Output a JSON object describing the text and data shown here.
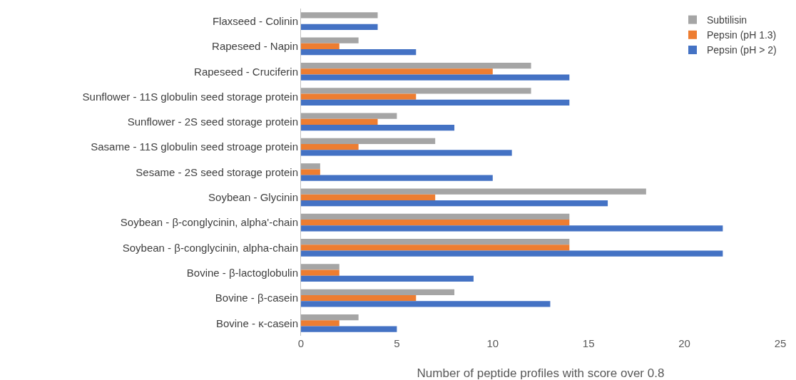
{
  "chart_data": {
    "type": "bar",
    "orientation": "horizontal",
    "xlabel": "Number of peptide profiles with score over 0.8",
    "categories": [
      "Flaxseed - Colinin",
      "Rapeseed - Napin",
      "Rapeseed - Cruciferin",
      "Sunflower - 11S globulin seed storage protein",
      "Sunflower - 2S seed storage protein",
      "Sasame - 11S globulin seed stroage protein",
      "Sesame - 2S seed storage protein",
      "Soybean - Glycinin",
      "Soybean - β-conglycinin, alpha'-chain",
      "Soybean - β-conglycinin, alpha-chain",
      "Bovine - β-lactoglobulin",
      "Bovine - β-casein",
      "Bovine - κ-casein"
    ],
    "series": [
      {
        "name": "Subtilisin",
        "color": "#a5a5a5",
        "values": [
          4,
          3,
          12,
          12,
          5,
          7,
          1,
          18,
          14,
          14,
          2,
          8,
          3
        ]
      },
      {
        "name": "Pepsin (pH 1.3)",
        "color": "#ed7d31",
        "values": [
          0,
          2,
          10,
          6,
          4,
          3,
          1,
          7,
          14,
          14,
          2,
          6,
          2
        ]
      },
      {
        "name": "Pepsin (pH > 2)",
        "color": "#4472c4",
        "values": [
          4,
          6,
          14,
          14,
          8,
          11,
          10,
          16,
          22,
          22,
          9,
          13,
          5
        ]
      }
    ],
    "xlim": [
      0,
      25
    ],
    "xticks": [
      0,
      5,
      10,
      15,
      20,
      25
    ],
    "grid": false,
    "legend": "top right"
  }
}
